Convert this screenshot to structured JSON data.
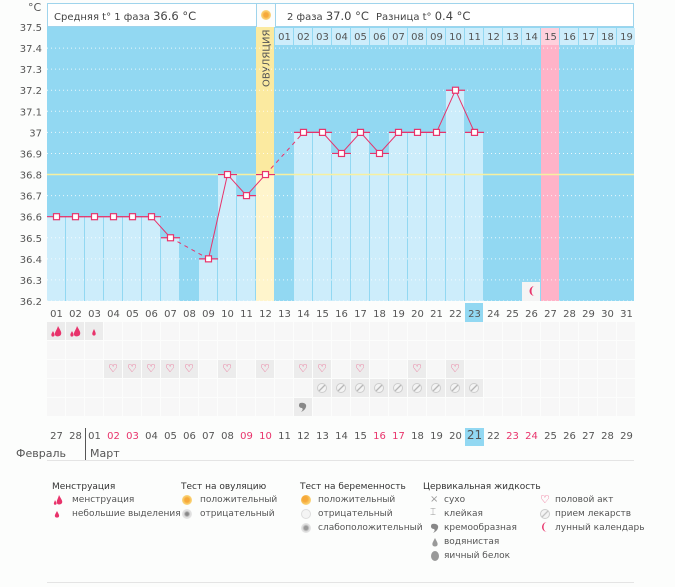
{
  "header": {
    "unit": "°C",
    "phase1_label": "Средняя t° 1 фаза",
    "phase1_value": "36.6 °C",
    "phase2_label": "2 фаза",
    "phase2_value": "37.0 °C",
    "diff_label": "Разница t°",
    "diff_value": "0.4 °C",
    "ovulation_label": "ОВУЛЯЦИЯ"
  },
  "colors": {
    "plot_bg": "#92d8f2",
    "bar_fill": "#cdedfb",
    "line": "#e8336b",
    "ovulation": "#fbeaa0",
    "cycle_day_highlight": "#ffb3c8",
    "coverline": "#f9f3a6",
    "red_day": "#e8336b",
    "today": "#92d8f2"
  },
  "chart_data": {
    "type": "line",
    "title": "Базальная температура",
    "ylabel": "°C",
    "ylim": [
      36.2,
      37.5
    ],
    "yticks": [
      "37.5",
      "37.4",
      "37.3",
      "37.2",
      "37.1",
      "37",
      "36.9",
      "36.8",
      "36.7",
      "36.6",
      "36.5",
      "36.4",
      "36.3",
      "36.2"
    ],
    "coverline": 36.8,
    "cycle_days": [
      "01",
      "02",
      "03",
      "04",
      "05",
      "06",
      "07",
      "08",
      "09",
      "10",
      "11",
      "12",
      "13",
      "14",
      "15",
      "16",
      "17",
      "18",
      "19",
      "20",
      "21",
      "22",
      "23",
      "24",
      "25",
      "26",
      "27",
      "28",
      "29",
      "30",
      "31"
    ],
    "temperatures": [
      36.6,
      36.6,
      36.6,
      36.6,
      36.6,
      36.6,
      36.5,
      null,
      36.4,
      36.8,
      36.7,
      36.8,
      null,
      37.0,
      37.0,
      36.9,
      37.0,
      36.9,
      37.0,
      37.0,
      37.0,
      37.2,
      37.0,
      null,
      null,
      null,
      null,
      null,
      null,
      null,
      null
    ],
    "dashed_segments": [
      [
        7,
        9
      ],
      [
        12,
        14
      ]
    ],
    "ovulation_day": "12",
    "today_cycle_day": "23",
    "phase2_days": [
      "01",
      "02",
      "03",
      "04",
      "05",
      "06",
      "07",
      "08",
      "09",
      "10",
      "11",
      "12",
      "13",
      "14",
      "15",
      "16",
      "17",
      "18",
      "19"
    ],
    "highlight_phase2_day": "15",
    "moon_day": "26"
  },
  "calendar": {
    "dates": [
      "27",
      "28",
      "01",
      "02",
      "03",
      "04",
      "05",
      "06",
      "07",
      "08",
      "09",
      "10",
      "11",
      "12",
      "13",
      "14",
      "15",
      "16",
      "17",
      "18",
      "19",
      "20",
      "21",
      "22",
      "23",
      "24",
      "25",
      "26",
      "27",
      "28",
      "29"
    ],
    "red_dates_idx": [
      3,
      4,
      10,
      11,
      17,
      18,
      24,
      25
    ],
    "today_idx": 22,
    "month_prev": "Февраль",
    "month_curr": "Март"
  },
  "symbols": {
    "menstruation": {
      "01": "heavy",
      "02": "heavy",
      "03": "light"
    },
    "intercourse_days": [
      "04",
      "05",
      "06",
      "07",
      "08",
      "10",
      "12",
      "14",
      "15",
      "17",
      "20",
      "22"
    ],
    "medication_days": [
      "15",
      "16",
      "17",
      "18",
      "19",
      "20",
      "21",
      "22",
      "23"
    ],
    "cervical_fluid": {
      "14": "creamy"
    }
  },
  "legend": {
    "menstruation": {
      "title": "Менструация",
      "items": [
        "менструация",
        "небольшие выделения"
      ]
    },
    "ovulation_test": {
      "title": "Тест на овуляцию",
      "items": [
        "положительный",
        "отрицательный"
      ]
    },
    "pregnancy_test": {
      "title": "Тест на беременность",
      "items": [
        "положительный",
        "отрицательный",
        "слабоположительный"
      ]
    },
    "cervical_fluid": {
      "title": "Цервикальная жидкость",
      "items": [
        "сухо",
        "клейкая",
        "кремообразная",
        "водянистая",
        "яичный белок"
      ]
    },
    "other": {
      "items": [
        "половой акт",
        "прием лекарств",
        "лунный календарь"
      ]
    }
  }
}
